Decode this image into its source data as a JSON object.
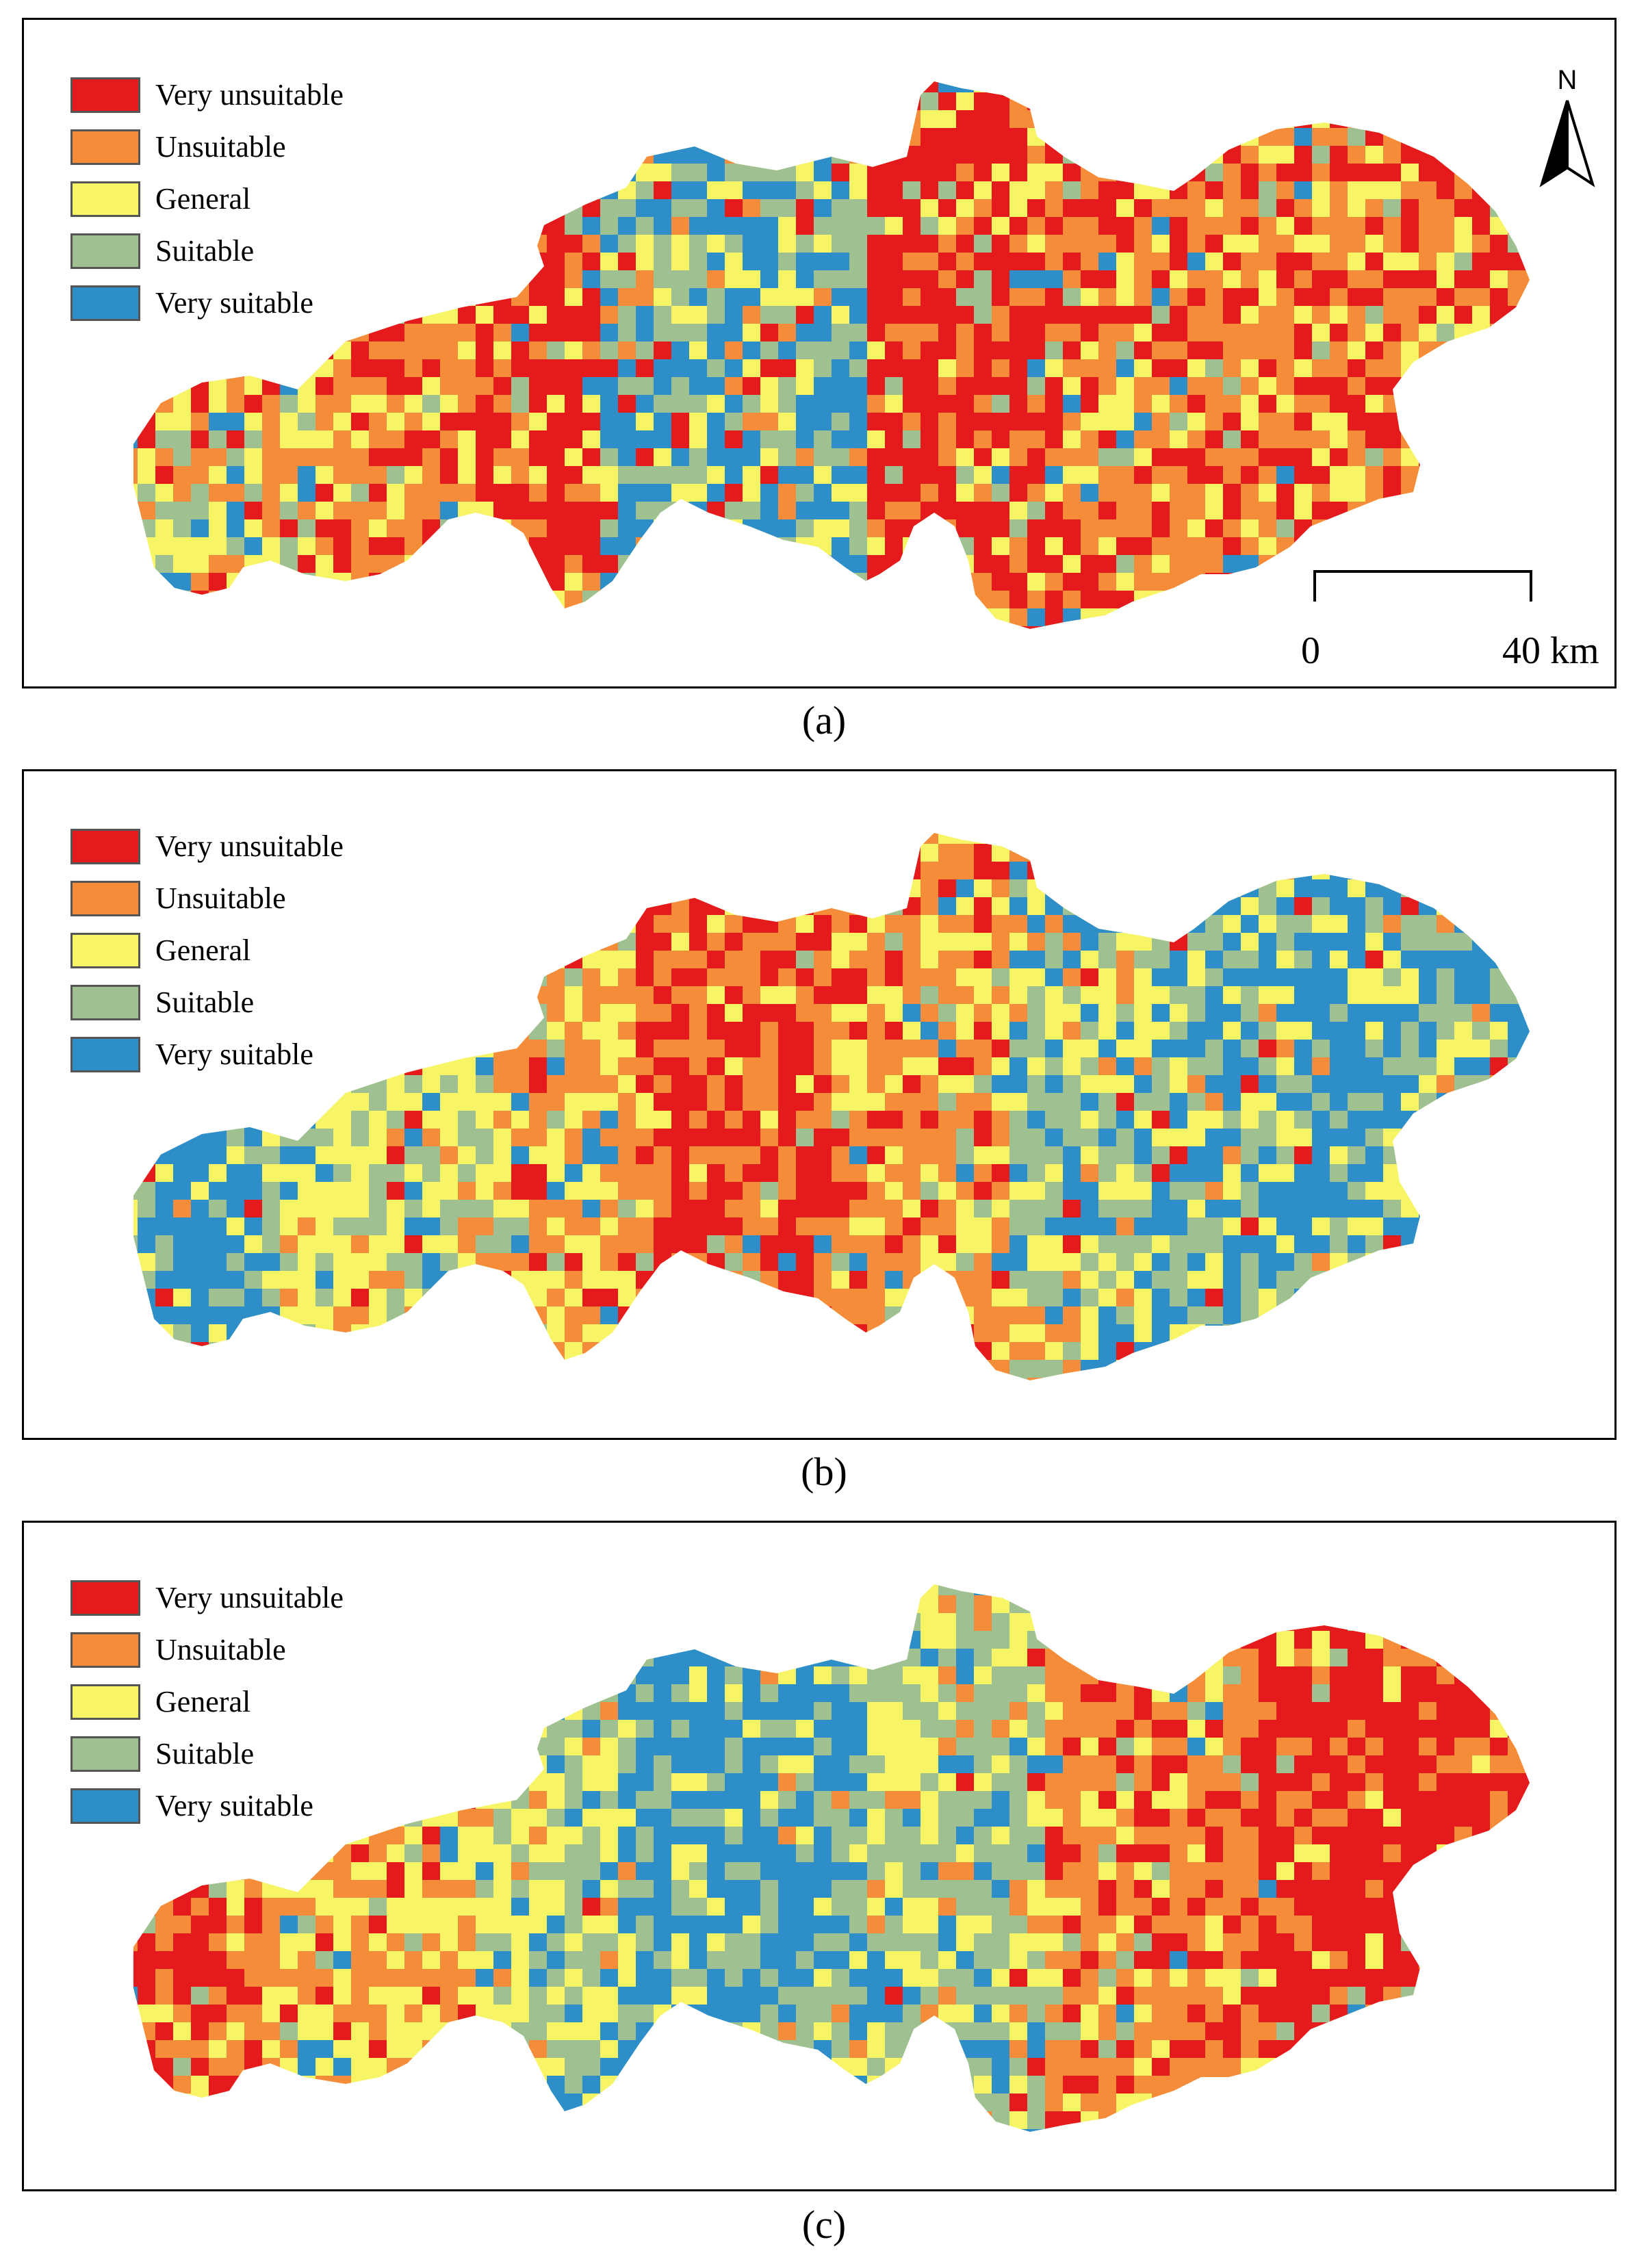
{
  "categories": [
    {
      "label": "Very unsuitable",
      "color": "#e41a1c"
    },
    {
      "label": "Unsuitable",
      "color": "#f58c3a"
    },
    {
      "label": "General",
      "color": "#f7f465"
    },
    {
      "label": "Suitable",
      "color": "#9fc090"
    },
    {
      "label": "Very suitable",
      "color": "#2e8ec8"
    }
  ],
  "panels": [
    {
      "caption": "(a)",
      "dominant_west": "mixed",
      "dominant_center": "Very suitable",
      "dominant_east": "Unsuitable"
    },
    {
      "caption": "(b)",
      "dominant_west": "Very suitable",
      "dominant_center": "Very unsuitable",
      "dominant_east": "Very suitable"
    },
    {
      "caption": "(c)",
      "dominant_west": "Unsuitable",
      "dominant_center": "Very suitable",
      "dominant_east": "Very unsuitable"
    }
  ],
  "north_arrow": {
    "letter": "N",
    "icon": "north-arrow-icon"
  },
  "scale_bar": {
    "start": "0",
    "end": "40 km"
  }
}
